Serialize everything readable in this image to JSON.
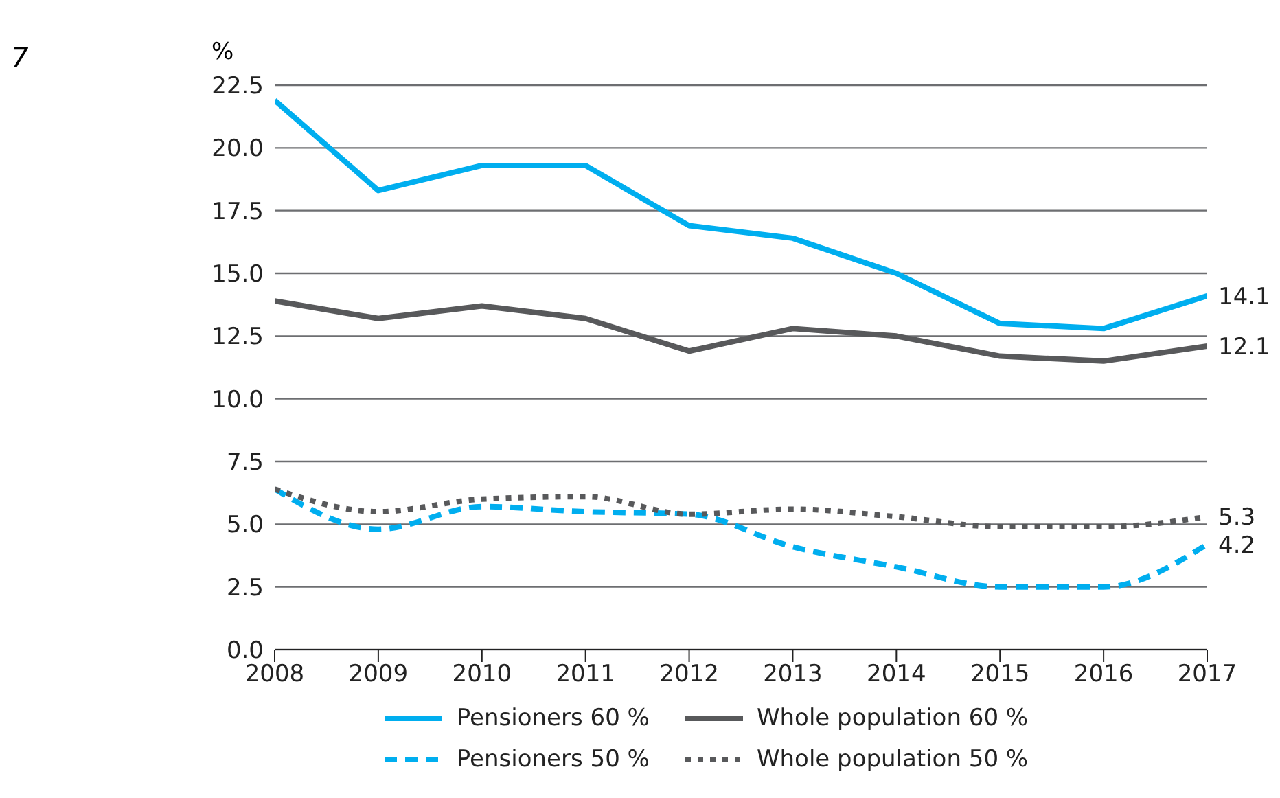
{
  "chart_data": {
    "type": "line",
    "ylabel": "%",
    "categories": [
      "2008",
      "2009",
      "2010",
      "2011",
      "2012",
      "2013",
      "2014",
      "2015",
      "2016",
      "2017"
    ],
    "series": [
      {
        "name": "Pensioners 60 %",
        "color": "#00aeef",
        "line_style": "solid",
        "values": [
          21.9,
          18.3,
          19.3,
          19.3,
          16.9,
          16.4,
          15.0,
          13.0,
          12.8,
          14.1
        ]
      },
      {
        "name": "Whole population 60 %",
        "color": "#58595b",
        "line_style": "solid",
        "values": [
          13.9,
          13.2,
          13.7,
          13.2,
          11.9,
          12.8,
          12.5,
          11.7,
          11.5,
          12.1
        ]
      },
      {
        "name": "Pensioners 50 %",
        "color": "#00aeef",
        "line_style": "dashed",
        "values": [
          6.4,
          4.8,
          5.7,
          5.5,
          5.4,
          4.1,
          3.3,
          2.5,
          2.5,
          4.2
        ]
      },
      {
        "name": "Whole population 50 %",
        "color": "#58595b",
        "line_style": "dotted",
        "values": [
          6.4,
          5.5,
          6.0,
          6.1,
          5.4,
          5.6,
          5.3,
          4.9,
          4.9,
          5.3
        ]
      }
    ],
    "ylim": [
      0,
      22.5
    ],
    "yticks": [
      {
        "value": 0,
        "label": "0.0"
      },
      {
        "value": 2.5,
        "label": "2.5"
      },
      {
        "value": 5,
        "label": "5.0"
      },
      {
        "value": 7.5,
        "label": "7.5"
      },
      {
        "value": 10,
        "label": "10.0"
      },
      {
        "value": 12.5,
        "label": "12.5"
      },
      {
        "value": 15,
        "label": "15.0"
      },
      {
        "value": 17.5,
        "label": "17.5"
      },
      {
        "value": 20,
        "label": "20.0"
      },
      {
        "value": 22.5,
        "label": "22.5"
      }
    ],
    "grid": "y",
    "legend": "bottom",
    "marker": "none",
    "annotations": [
      "7",
      {
        "text": "14.1",
        "x": "2017",
        "y": 14.1
      },
      {
        "text": "12.1",
        "x": "2017",
        "y": 12.1
      },
      {
        "text": "5.3",
        "x": "2017",
        "y": 5.3
      },
      {
        "text": "4.2",
        "x": "2017",
        "y": 4.2
      }
    ]
  }
}
